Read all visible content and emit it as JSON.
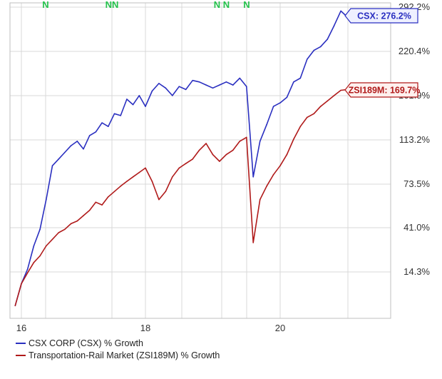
{
  "chart_data": {
    "type": "line",
    "x_ticks": [
      "16",
      "18",
      "20"
    ],
    "y_ticks": [
      "292.2%",
      "220.4%",
      "161.9%",
      "113.2%",
      "73.5%",
      "41.0%",
      "14.3%"
    ],
    "markers": [
      "N",
      "NN",
      "N N",
      "N"
    ],
    "colors": {
      "csx": "#2a2fc0",
      "rail": "#b01a1a",
      "grid": "#d9d9d9",
      "axis": "#bfbfbf"
    },
    "callouts": {
      "csx": "CSX: 276.2%",
      "rail": "ZSI189M: 169.7%"
    },
    "series": [
      {
        "name": "CSX CORP (CSX) % Growth",
        "key": "csx",
        "x": [
          2015.9,
          2016.0,
          2016.1,
          2016.2,
          2016.3,
          2016.4,
          2016.5,
          2016.6,
          2016.7,
          2016.8,
          2016.9,
          2017.0,
          2017.1,
          2017.2,
          2017.3,
          2017.4,
          2017.5,
          2017.6,
          2017.7,
          2017.8,
          2017.9,
          2018.0,
          2018.1,
          2018.2,
          2018.3,
          2018.4,
          2018.5,
          2018.6,
          2018.7,
          2018.8,
          2018.9,
          2019.0,
          2019.1,
          2019.2,
          2019.3,
          2019.4,
          2019.5,
          2019.6,
          2019.7,
          2019.8,
          2019.9,
          2020.0,
          2020.1,
          2020.2,
          2020.3,
          2020.4,
          2020.5,
          2020.6,
          2020.7,
          2020.8,
          2020.9,
          2021.0
        ],
        "y": [
          2,
          10,
          16,
          30,
          40,
          62,
          90,
          96,
          102,
          108,
          112,
          105,
          118,
          122,
          132,
          128,
          142,
          140,
          158,
          152,
          162,
          150,
          168,
          178,
          172,
          162,
          174,
          170,
          182,
          180,
          176,
          172,
          176,
          180,
          176,
          185,
          174,
          80,
          112,
          130,
          150,
          154,
          160,
          180,
          185,
          210,
          222,
          228,
          240,
          262,
          286,
          276
        ]
      },
      {
        "name": "Transportation-Rail Market (ZSI189M) % Growth",
        "key": "rail",
        "x": [
          2015.9,
          2016.0,
          2016.1,
          2016.2,
          2016.3,
          2016.4,
          2016.5,
          2016.6,
          2016.7,
          2016.8,
          2016.9,
          2017.0,
          2017.1,
          2017.2,
          2017.3,
          2017.4,
          2017.5,
          2017.6,
          2017.7,
          2017.8,
          2017.9,
          2018.0,
          2018.1,
          2018.2,
          2018.3,
          2018.4,
          2018.5,
          2018.6,
          2018.7,
          2018.8,
          2018.9,
          2019.0,
          2019.1,
          2019.2,
          2019.3,
          2019.4,
          2019.5,
          2019.6,
          2019.7,
          2019.8,
          2019.9,
          2020.0,
          2020.1,
          2020.2,
          2020.3,
          2020.4,
          2020.5,
          2020.6,
          2020.7,
          2020.8,
          2020.9,
          2021.0
        ],
        "y": [
          2,
          10,
          14,
          20,
          24,
          30,
          34,
          38,
          40,
          44,
          46,
          50,
          54,
          60,
          58,
          64,
          68,
          72,
          76,
          80,
          84,
          88,
          76,
          62,
          68,
          80,
          88,
          92,
          96,
          104,
          110,
          100,
          94,
          100,
          104,
          112,
          116,
          32,
          62,
          72,
          82,
          90,
          100,
          114,
          128,
          138,
          142,
          150,
          156,
          162,
          169,
          170
        ]
      }
    ],
    "legend": [
      "CSX CORP (CSX) % Growth",
      "Transportation-Rail Market (ZSI189M) % Growth"
    ],
    "legend_position": "bottom-left"
  }
}
